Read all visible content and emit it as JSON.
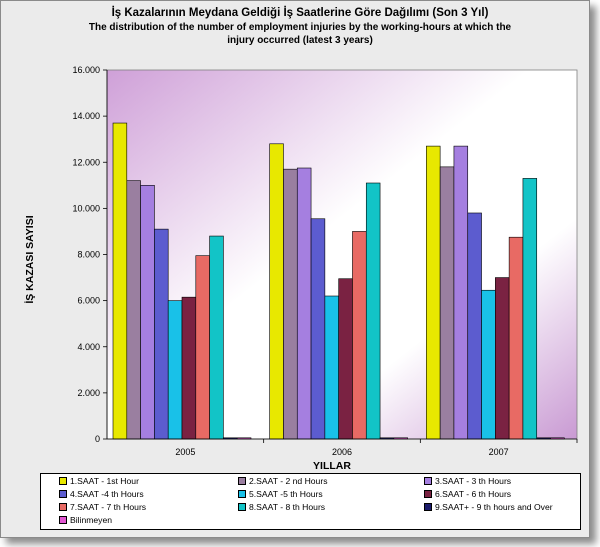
{
  "titles": {
    "main": "İş Kazalarının Meydana Geldiği İş Saatlerine Göre Dağılımı (Son 3 Yıl)",
    "sub_line1": "The distribution of the number of employment injuries by the working-hours at which the",
    "sub_line2": "injury occurred (latest 3 years)"
  },
  "chart_data": {
    "type": "bar",
    "title": "İş Kazalarının Meydana Geldiği İş Saatlerine Göre Dağılımı (Son 3 Yıl)",
    "xlabel": "YILLAR",
    "ylabel": "İŞ KAZASI SAYISI",
    "ylim": [
      0,
      16000
    ],
    "yticks": [
      "0",
      "2.000",
      "4.000",
      "6.000",
      "8.000",
      "10.000",
      "12.000",
      "14.000",
      "16.000"
    ],
    "grid": false,
    "legend_position": "bottom",
    "categories": [
      "2005",
      "2006",
      "2007"
    ],
    "series": [
      {
        "name": "1.SAAT - 1st Hour",
        "color": "#e8e800",
        "values": [
          13700,
          12800,
          12700
        ]
      },
      {
        "name": "2.SAAT - 2 nd Hours",
        "color": "#9a7fa0",
        "values": [
          11200,
          11700,
          11800
        ]
      },
      {
        "name": "3.SAAT - 3 th Hours",
        "color": "#a57fe0",
        "values": [
          11000,
          11750,
          12700
        ]
      },
      {
        "name": "4.SAAT -4 th  Hours",
        "color": "#5c5ccf",
        "values": [
          9100,
          9550,
          9800
        ]
      },
      {
        "name": "5.SAAT -5 th  Hours",
        "color": "#19c1e8",
        "values": [
          6000,
          6200,
          6450
        ]
      },
      {
        "name": "6.SAAT - 6 th  Hours",
        "color": "#7a2242",
        "values": [
          6150,
          6950,
          7000
        ]
      },
      {
        "name": "7.SAAT - 7 th  Hours",
        "color": "#e86a64",
        "values": [
          7950,
          9000,
          8750
        ]
      },
      {
        "name": "8.SAAT - 8 th Hours",
        "color": "#12c4c7",
        "values": [
          8800,
          11100,
          11300
        ]
      },
      {
        "name": "9.SAAT+ - 9 th hours  and Over",
        "color": "#1a1a6a",
        "values": [
          0,
          0,
          0
        ]
      },
      {
        "name": "Bilinmeyen",
        "color": "#e256d2",
        "values": [
          0,
          0,
          0
        ]
      }
    ]
  }
}
